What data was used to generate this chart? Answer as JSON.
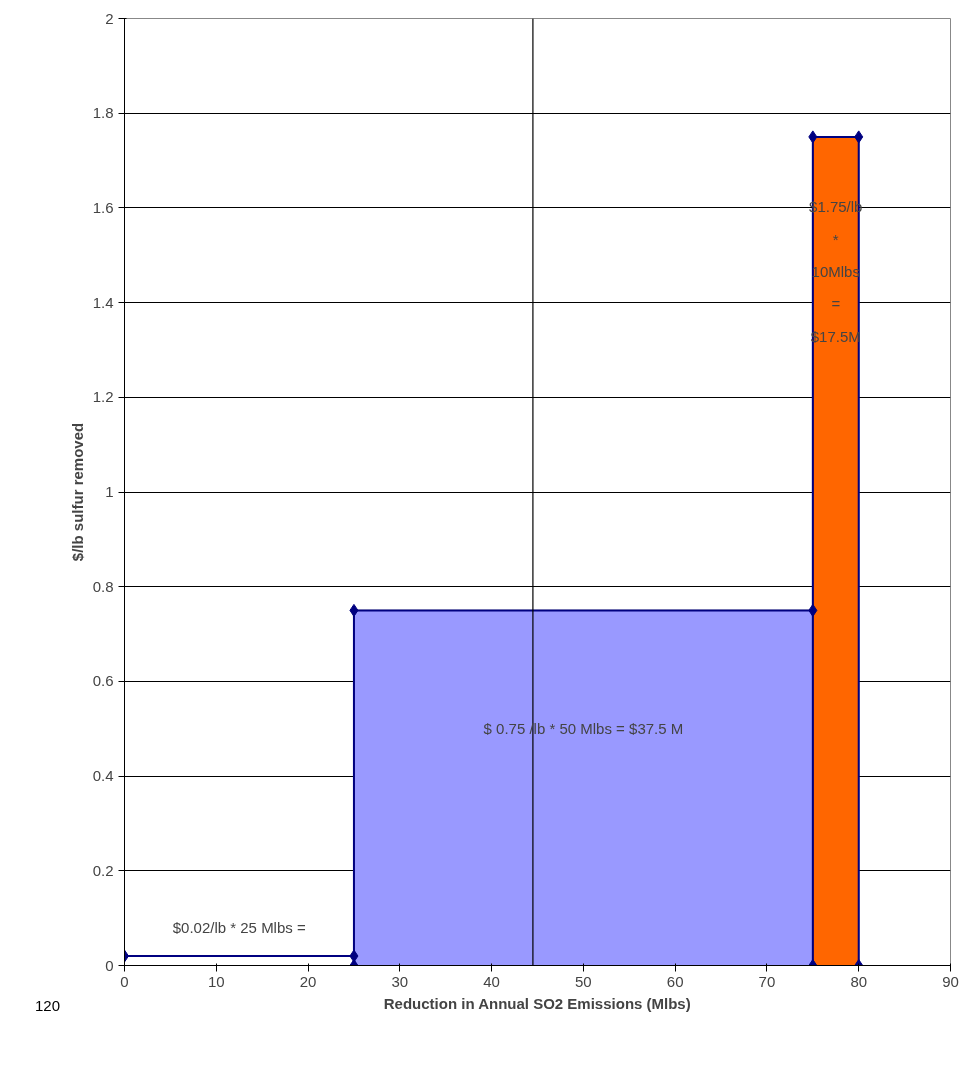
{
  "chart_data": {
    "type": "line",
    "xlabel": "Reduction in Annual SO2 Emissions (Mlbs)",
    "ylabel": "$/lb sulfur removed",
    "series": [
      {
        "type": "area",
        "color": "#9999ff",
        "x": [
          25,
          75
        ],
        "values": [
          0.75,
          0.75
        ]
      },
      {
        "type": "area",
        "color": "#ff6600",
        "x": [
          75,
          80
        ],
        "values": [
          1.75,
          1.75
        ]
      },
      {
        "color": "#000080",
        "marker": "diamond",
        "x": [
          0,
          25,
          25,
          25,
          75,
          75,
          75,
          80,
          80
        ],
        "values": [
          0.02,
          0.02,
          0,
          0.75,
          0.75,
          0,
          1.75,
          1.75,
          0
        ]
      }
    ],
    "line_style": "solid",
    "xlim": [
      0,
      90
    ],
    "xticks": [
      0,
      10,
      20,
      30,
      40,
      50,
      60,
      70,
      80,
      90
    ],
    "ylim": [
      0,
      2
    ],
    "yticks": [
      0,
      0.2,
      0.4,
      0.6,
      0.8,
      1,
      1.2,
      1.4,
      1.6,
      1.8,
      2
    ],
    "grid": "y",
    "ref_lines": [
      {
        "axis": "x",
        "value": 44.5,
        "color": "#000000"
      }
    ],
    "annotations": [
      "$0.02/lb * 25 Mlbs =",
      "$ 0.75 /lb * 50 Mlbs = $37.5 M",
      "$1.75/lb * 10Mlbs = $17.5M",
      "120"
    ]
  }
}
